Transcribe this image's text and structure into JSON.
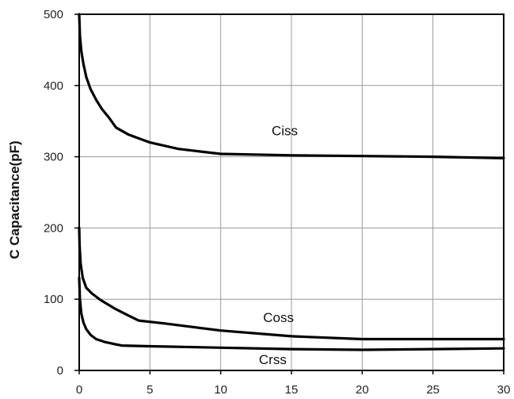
{
  "chart_data": {
    "type": "line",
    "title": "",
    "xlabel": "",
    "ylabel": "C Capacitance(pF)",
    "xlim": [
      0,
      30
    ],
    "ylim": [
      0,
      500
    ],
    "grid": true,
    "legend": "none (series labeled inline)",
    "x_ticks": [
      "0",
      "5",
      "10",
      "15",
      "20",
      "25",
      "30"
    ],
    "y_ticks": [
      "0",
      "100",
      "200",
      "300",
      "400",
      "500"
    ],
    "line_color": "#000000",
    "series": [
      {
        "name": "Ciss",
        "label_at": [
          13.6,
          330
        ],
        "x": [
          0.0,
          0.05,
          0.15,
          0.3,
          0.5,
          0.8,
          1.2,
          1.6,
          2.1,
          2.6,
          3.5,
          5.0,
          7.0,
          10.0,
          15.0,
          20.0,
          25.0,
          30.0
        ],
        "y": [
          500,
          470,
          448,
          430,
          412,
          395,
          380,
          367,
          355,
          341,
          331,
          320,
          311,
          304,
          302,
          301,
          300,
          298
        ]
      },
      {
        "name": "Coss",
        "label_at": [
          13.0,
          68
        ],
        "x": [
          0.0,
          0.03,
          0.1,
          0.25,
          0.5,
          0.9,
          1.5,
          2.5,
          3.5,
          4.2,
          6.0,
          8.0,
          10.0,
          15.0,
          20.0,
          25.0,
          30.0
        ],
        "y": [
          200,
          175,
          150,
          130,
          116,
          108,
          99,
          87,
          77,
          70,
          66,
          61,
          56,
          48,
          44,
          44,
          44
        ]
      },
      {
        "name": "Crss",
        "label_at": [
          12.7,
          9
        ],
        "x": [
          0.0,
          0.05,
          0.15,
          0.3,
          0.5,
          0.8,
          1.2,
          1.8,
          2.5,
          3.0,
          5.0,
          10.0,
          15.0,
          20.0,
          25.0,
          30.0
        ],
        "y": [
          130,
          100,
          80,
          67,
          58,
          50,
          44,
          40,
          37,
          35,
          34,
          32,
          30,
          29,
          30,
          31
        ]
      }
    ]
  }
}
